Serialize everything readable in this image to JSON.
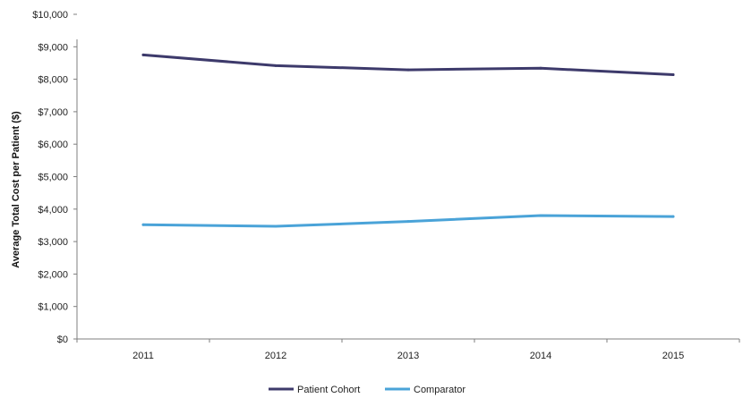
{
  "chart_data": {
    "type": "line",
    "title": "",
    "xlabel": "",
    "ylabel": "Average Total Cost per Patient ($)",
    "categories": [
      "2011",
      "2012",
      "2013",
      "2014",
      "2015"
    ],
    "ylim": [
      0,
      10000
    ],
    "y_ticks": [
      0,
      1000,
      2000,
      3000,
      4000,
      5000,
      6000,
      7000,
      8000,
      9000,
      10000
    ],
    "y_tick_labels": [
      "$0",
      "$1,000",
      "$2,000",
      "$3,000",
      "$4,000",
      "$5,000",
      "$6,000",
      "$7,000",
      "$8,000",
      "$9,000",
      "$10,000"
    ],
    "grid": false,
    "legend_position": "bottom",
    "series": [
      {
        "name": "Patient Cohort",
        "color": "#3d3a6b",
        "values": [
          8750,
          8420,
          8290,
          8340,
          8140
        ]
      },
      {
        "name": "Comparator",
        "color": "#4aa3d8",
        "values": [
          3520,
          3470,
          3620,
          3800,
          3770
        ]
      }
    ]
  }
}
